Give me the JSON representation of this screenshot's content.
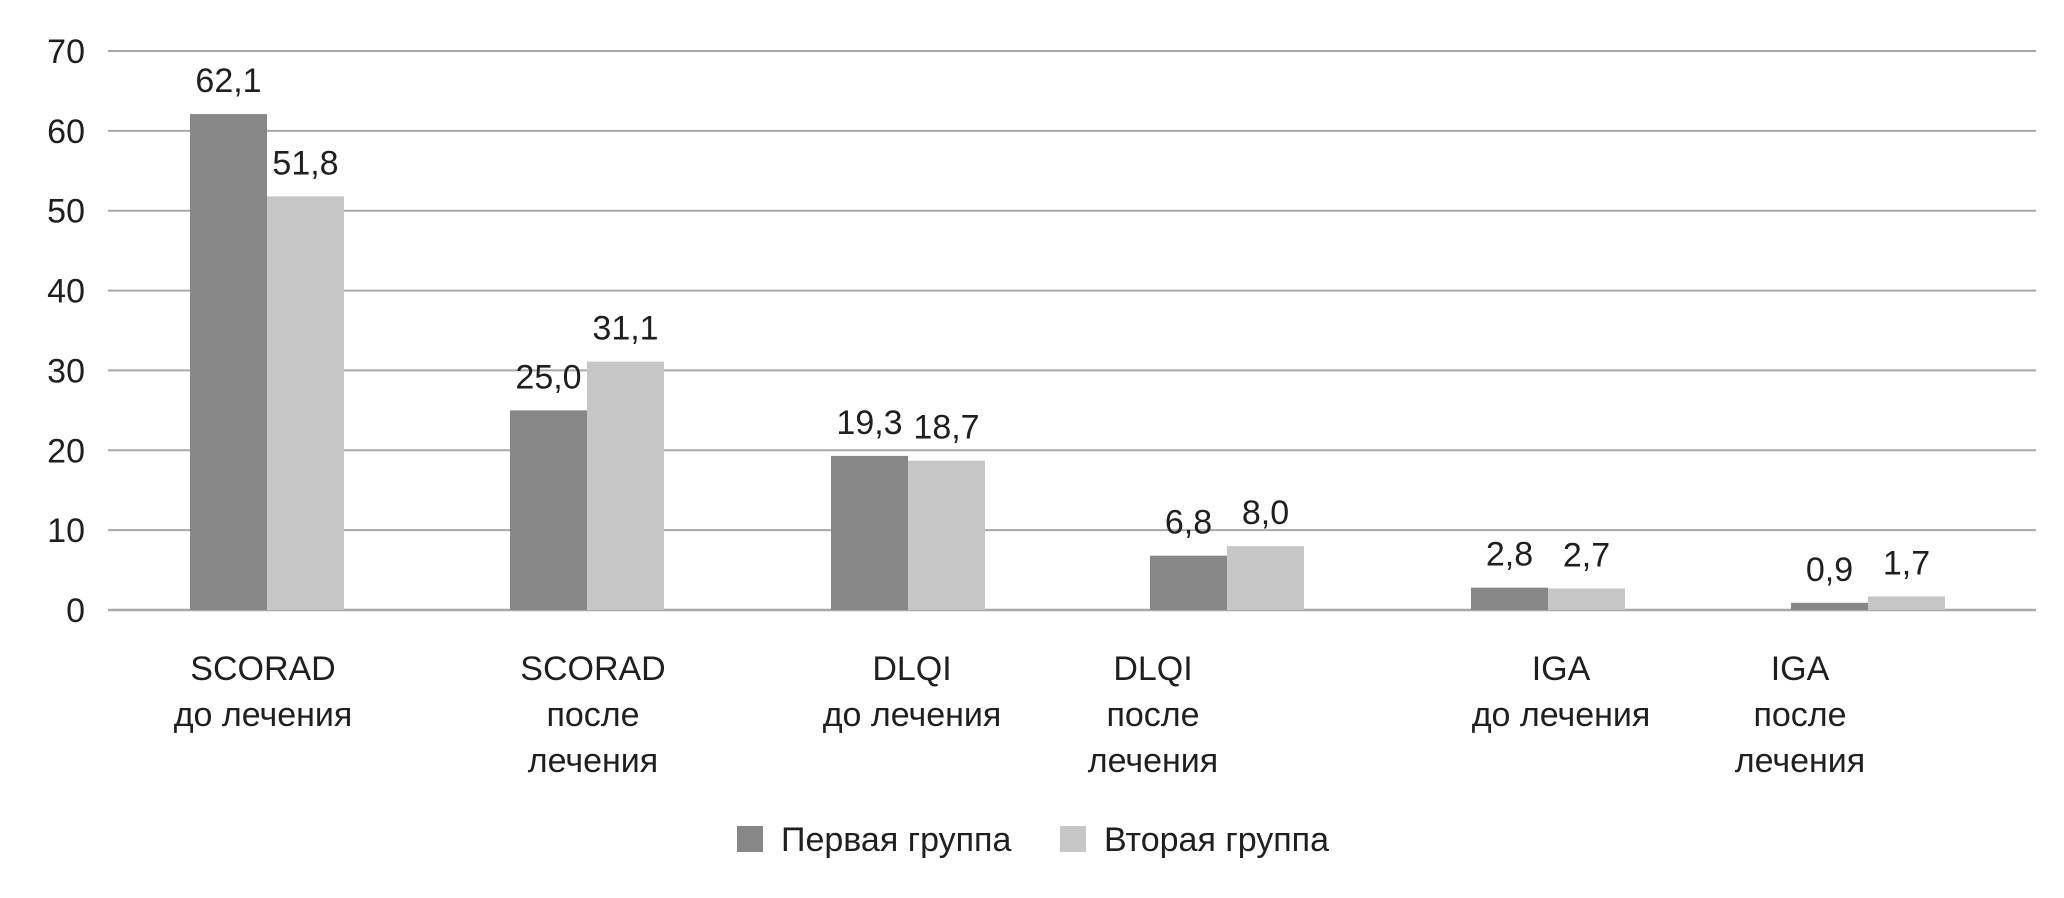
{
  "chart_data": {
    "type": "bar",
    "title": "",
    "xlabel": "",
    "ylabel": "",
    "ylim": [
      0,
      70
    ],
    "yticks": [
      0,
      10,
      20,
      30,
      40,
      50,
      60,
      70
    ],
    "grid": true,
    "legend_position": "bottom-center",
    "categories": [
      [
        "SCORAD",
        "до лечения"
      ],
      [
        "SCORAD",
        "после",
        "лечения"
      ],
      [
        "DLQI",
        "до лечения"
      ],
      [
        "DLQI",
        "после",
        "лечения"
      ],
      [
        "IGA",
        "до лечения"
      ],
      [
        "IGA",
        "после",
        "лечения"
      ]
    ],
    "series": [
      {
        "name": "Первая группа",
        "color": "#878787",
        "values": [
          62.1,
          25.0,
          19.3,
          6.8,
          2.8,
          0.9
        ],
        "labels": [
          "62,1",
          "25,0",
          "19,3",
          "6,8",
          "2,8",
          "0,9"
        ]
      },
      {
        "name": "Вторая группа",
        "color": "#c6c6c6",
        "values": [
          51.8,
          31.1,
          18.7,
          8.0,
          2.7,
          1.7
        ],
        "labels": [
          "51,8",
          "31,1",
          "18,7",
          "8,0",
          "2,7",
          "1,7"
        ]
      }
    ],
    "gridline_color": "#a8a8a8"
  }
}
